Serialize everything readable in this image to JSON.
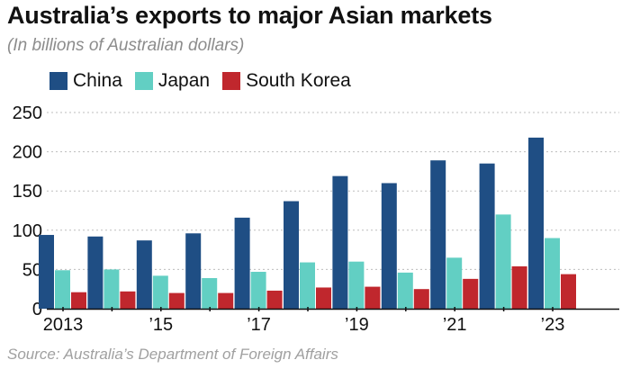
{
  "chart_data": {
    "type": "bar",
    "title": "Australia’s exports to major Asian markets",
    "subtitle": "(In billions of Australian dollars)",
    "source": "Source: Australia’s Department of Foreign Affairs",
    "xlabel": "",
    "ylabel": "",
    "ylim": [
      0,
      250
    ],
    "yticks": [
      0,
      50,
      100,
      150,
      200,
      250
    ],
    "yticks_labels": [
      "0",
      "50",
      "100",
      "150",
      "200",
      "250"
    ],
    "grid": true,
    "legend_position": "top-left",
    "categories": [
      "2013",
      "2014",
      "2015",
      "2016",
      "2017",
      "2018",
      "2019",
      "2020",
      "2021",
      "2022",
      "2023"
    ],
    "xtick_labels": [
      "2013",
      "",
      "’15",
      "",
      "’17",
      "",
      "’19",
      "",
      "’21",
      "",
      "’23"
    ],
    "series": [
      {
        "name": "China",
        "color": "#1f4e84",
        "values": [
          94,
          92,
          87,
          96,
          116,
          137,
          169,
          160,
          189,
          185,
          218
        ]
      },
      {
        "name": "Japan",
        "color": "#62cfc3",
        "values": [
          49,
          50,
          42,
          39,
          47,
          59,
          60,
          46,
          65,
          120,
          90
        ]
      },
      {
        "name": "South Korea",
        "color": "#c0272d",
        "values": [
          21,
          22,
          20,
          20,
          23,
          27,
          28,
          25,
          38,
          54,
          44
        ]
      }
    ]
  }
}
